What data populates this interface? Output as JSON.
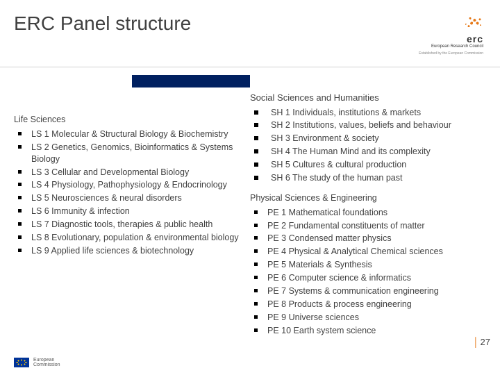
{
  "title": "ERC Panel structure",
  "logo": {
    "acronym": "erc",
    "subtitle": "European Research Council",
    "established": "Established by the European Commission"
  },
  "colors": {
    "accent_bar": "#002060",
    "orange": "#e67817",
    "text": "#404040"
  },
  "left": {
    "heading": "Life Sciences",
    "items": [
      "LS 1 Molecular & Structural Biology & Biochemistry",
      "LS 2 Genetics, Genomics, Bioinformatics & Systems Biology",
      "LS 3 Cellular and Developmental Biology",
      "LS 4 Physiology, Pathophysiology & Endocrinology",
      "LS 5 Neurosciences & neural disorders",
      "LS 6 Immunity & infection",
      "LS 7 Diagnostic tools, therapies & public health",
      "LS 8 Evolutionary, population & environmental biology",
      "LS 9 Applied life sciences & biotechnology"
    ]
  },
  "right_a": {
    "heading": "Social Sciences and Humanities",
    "items": [
      "SH 1 Individuals, institutions & markets",
      "SH 2 Institutions, values, beliefs and behaviour",
      "SH 3 Environment & society",
      "SH 4 The Human Mind and its complexity",
      "SH 5 Cultures & cultural production",
      "SH 6 The study of the human past"
    ]
  },
  "right_b": {
    "heading": "Physical Sciences & Engineering",
    "items": [
      "PE 1 Mathematical foundations",
      "PE 2 Fundamental constituents of matter",
      "PE 3 Condensed matter physics",
      "PE 4 Physical & Analytical Chemical sciences",
      "PE 5 Materials & Synthesis",
      "PE 6 Computer science & informatics",
      "PE 7 Systems & communication engineering",
      "PE 8 Products & process engineering",
      "PE 9 Universe sciences",
      "PE 10 Earth system science"
    ]
  },
  "footer": {
    "ec_line1": "European",
    "ec_line2": "Commission"
  },
  "page": "27"
}
